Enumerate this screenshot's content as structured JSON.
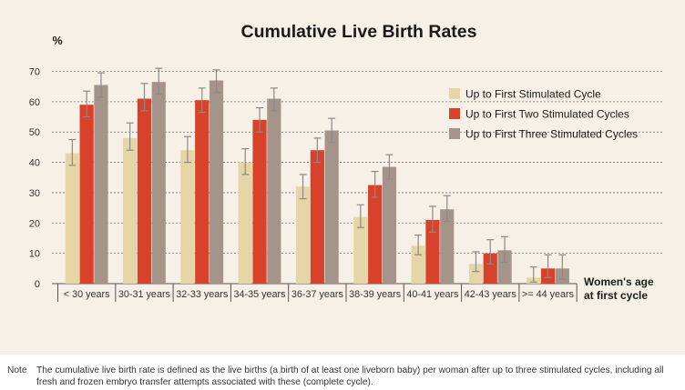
{
  "chart_data": {
    "type": "bar",
    "title": "Cumulative Live Birth Rates",
    "ylabel": "%",
    "xlabel_lines": [
      "Women's age",
      "at first cycle"
    ],
    "ylim": [
      0,
      75
    ],
    "yticks": [
      0,
      10,
      20,
      30,
      40,
      50,
      60,
      70
    ],
    "grid": true,
    "legend_position": "right",
    "categories": [
      "< 30 years",
      "30-31 years",
      "32-33 years",
      "34-35 years",
      "36-37 years",
      "38-39 years",
      "40-41 years",
      "42-43 years",
      ">= 44 years"
    ],
    "series": [
      {
        "name": "Up to First Stimulated Cycle",
        "color": "#e6d5a7",
        "values": [
          43,
          48,
          44,
          40,
          32,
          22,
          12.5,
          6.5,
          2
        ],
        "error_low": [
          39,
          44,
          40,
          36,
          28,
          18.5,
          9.5,
          4,
          0.5
        ],
        "error_high": [
          47.5,
          53,
          48.5,
          44.5,
          36,
          26,
          16,
          10.5,
          5.5
        ]
      },
      {
        "name": "Up to First Two Stimulated Cycles",
        "color": "#d8412a",
        "values": [
          59,
          61,
          60.5,
          54,
          44,
          32.5,
          21,
          10,
          5
        ],
        "error_low": [
          55,
          57,
          56.5,
          50,
          40,
          28.5,
          17,
          6.5,
          2
        ],
        "error_high": [
          63.5,
          66,
          64.5,
          58,
          48,
          37,
          25.5,
          14.5,
          9.5
        ]
      },
      {
        "name": "Up to First Three Stimulated Cycles",
        "color": "#a59489",
        "values": [
          65.5,
          66.5,
          67,
          61,
          50.5,
          38.5,
          24.5,
          11,
          5
        ],
        "error_low": [
          61.5,
          62.5,
          63,
          57,
          46.5,
          34.5,
          20.5,
          7,
          1.5
        ],
        "error_high": [
          69.5,
          71,
          70.5,
          64.5,
          54.5,
          42.5,
          29,
          15.5,
          9.5
        ]
      }
    ]
  },
  "note": {
    "label": "Note",
    "text": "The cumulative live birth rate is defined as the live births (a birth of at least one liveborn baby) per woman after up to three stimulated cycles, including all fresh and frozen embryo transfer attempts associated with these (complete cycle)."
  }
}
